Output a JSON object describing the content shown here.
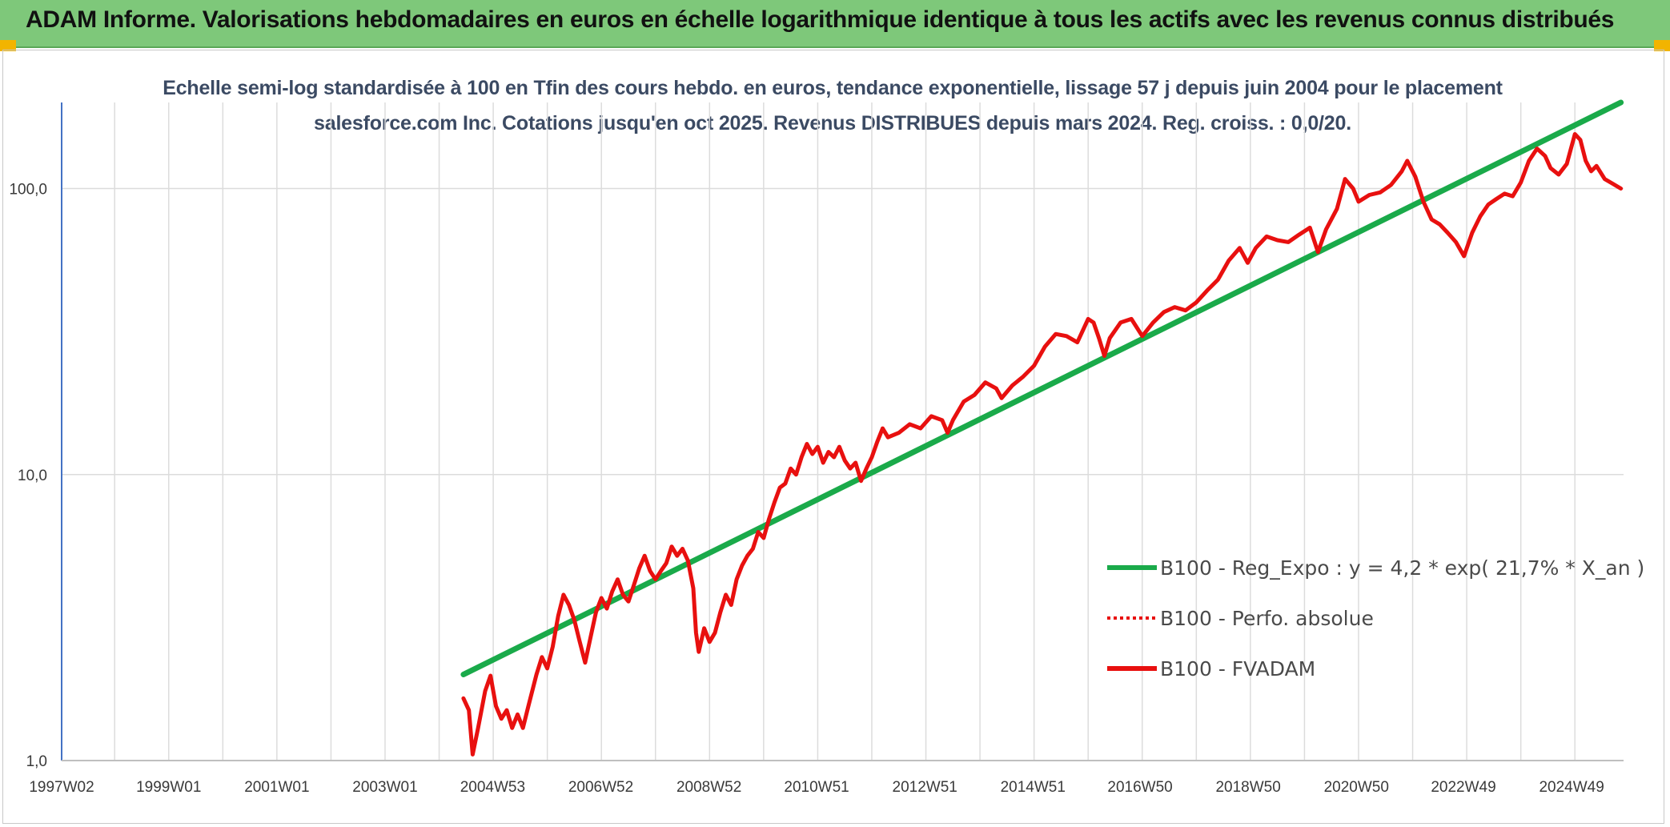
{
  "header": {
    "title": "ADAM Informe. Valorisations hebdomadaires en euros en échelle logarithmique identique à tous les actifs avec les revenus connus distribués"
  },
  "colors": {
    "header_bg": "#7ec87a",
    "corner_accent": "#f2b400",
    "trend": "#1aaa4a",
    "fvadam": "#e8100f",
    "perfo": "#e8100f",
    "grid": "#dcdcdc",
    "axis": "#4472c4"
  },
  "chart_data": {
    "type": "line",
    "title": "Echelle semi-log standardisée à 100 en Tfin des cours hebdo. en euros, tendance exponentielle, lissage 57 j depuis juin 2004 pour le placement salesforce.com Inc. Cotations jusqu'en oct 2025. Revenus DISTRIBUES depuis mars 2024. Reg. croiss. : 0,0/20.",
    "y_scale": "log",
    "ylim": [
      1,
      200
    ],
    "xlim": [
      1997.02,
      2025.9
    ],
    "y_ticks": [
      {
        "value": 1,
        "label": "1,0"
      },
      {
        "value": 10,
        "label": "10,0"
      },
      {
        "value": 100,
        "label": "100,0"
      }
    ],
    "x_ticks": [
      {
        "value": 1997.02,
        "label": "1997W02"
      },
      {
        "value": 1999.0,
        "label": "1999W01"
      },
      {
        "value": 2001.0,
        "label": "2001W01"
      },
      {
        "value": 2003.0,
        "label": "2003W01"
      },
      {
        "value": 2004.99,
        "label": "2004W53"
      },
      {
        "value": 2006.99,
        "label": "2006W52"
      },
      {
        "value": 2008.99,
        "label": "2008W52"
      },
      {
        "value": 2010.98,
        "label": "2010W51"
      },
      {
        "value": 2012.98,
        "label": "2012W51"
      },
      {
        "value": 2014.98,
        "label": "2014W51"
      },
      {
        "value": 2016.96,
        "label": "2016W50"
      },
      {
        "value": 2018.96,
        "label": "2018W50"
      },
      {
        "value": 2020.96,
        "label": "2020W50"
      },
      {
        "value": 2022.94,
        "label": "2022W49"
      },
      {
        "value": 2024.94,
        "label": "2024W49"
      }
    ],
    "grid": true,
    "legend_position": "right",
    "series": [
      {
        "name": "B100 - Reg_Expo : y = 4,2 * exp( 21,7% *  X_an )",
        "style": "solid",
        "points": [
          [
            2004.45,
            2.0
          ],
          [
            2025.85,
            200
          ]
        ]
      },
      {
        "name": "B100 - Perfo. absolue",
        "style": "dotted",
        "points": []
      },
      {
        "name": "B100 - FVADAM",
        "style": "solid",
        "points": [
          [
            2004.45,
            1.65
          ],
          [
            2004.55,
            1.5
          ],
          [
            2004.62,
            1.05
          ],
          [
            2004.72,
            1.3
          ],
          [
            2004.85,
            1.75
          ],
          [
            2004.95,
            1.98
          ],
          [
            2005.05,
            1.55
          ],
          [
            2005.15,
            1.4
          ],
          [
            2005.25,
            1.5
          ],
          [
            2005.35,
            1.3
          ],
          [
            2005.45,
            1.45
          ],
          [
            2005.55,
            1.3
          ],
          [
            2005.65,
            1.55
          ],
          [
            2005.8,
            2.0
          ],
          [
            2005.9,
            2.3
          ],
          [
            2006.0,
            2.1
          ],
          [
            2006.1,
            2.5
          ],
          [
            2006.2,
            3.2
          ],
          [
            2006.3,
            3.8
          ],
          [
            2006.4,
            3.5
          ],
          [
            2006.5,
            3.1
          ],
          [
            2006.6,
            2.6
          ],
          [
            2006.7,
            2.2
          ],
          [
            2006.8,
            2.7
          ],
          [
            2006.9,
            3.3
          ],
          [
            2007.0,
            3.7
          ],
          [
            2007.1,
            3.4
          ],
          [
            2007.2,
            3.9
          ],
          [
            2007.3,
            4.3
          ],
          [
            2007.4,
            3.8
          ],
          [
            2007.5,
            3.6
          ],
          [
            2007.6,
            4.1
          ],
          [
            2007.7,
            4.7
          ],
          [
            2007.8,
            5.2
          ],
          [
            2007.9,
            4.6
          ],
          [
            2008.0,
            4.3
          ],
          [
            2008.1,
            4.6
          ],
          [
            2008.2,
            4.9
          ],
          [
            2008.3,
            5.6
          ],
          [
            2008.4,
            5.2
          ],
          [
            2008.5,
            5.5
          ],
          [
            2008.6,
            5.0
          ],
          [
            2008.7,
            4.0
          ],
          [
            2008.75,
            2.8
          ],
          [
            2008.8,
            2.4
          ],
          [
            2008.9,
            2.9
          ],
          [
            2009.0,
            2.6
          ],
          [
            2009.1,
            2.8
          ],
          [
            2009.2,
            3.3
          ],
          [
            2009.3,
            3.8
          ],
          [
            2009.4,
            3.5
          ],
          [
            2009.5,
            4.3
          ],
          [
            2009.6,
            4.8
          ],
          [
            2009.7,
            5.2
          ],
          [
            2009.8,
            5.5
          ],
          [
            2009.9,
            6.3
          ],
          [
            2010.0,
            6.0
          ],
          [
            2010.1,
            7.0
          ],
          [
            2010.2,
            8.0
          ],
          [
            2010.3,
            9.0
          ],
          [
            2010.4,
            9.3
          ],
          [
            2010.5,
            10.5
          ],
          [
            2010.6,
            10.0
          ],
          [
            2010.7,
            11.5
          ],
          [
            2010.8,
            12.8
          ],
          [
            2010.9,
            11.8
          ],
          [
            2011.0,
            12.5
          ],
          [
            2011.1,
            11.0
          ],
          [
            2011.2,
            12.0
          ],
          [
            2011.3,
            11.5
          ],
          [
            2011.4,
            12.5
          ],
          [
            2011.5,
            11.2
          ],
          [
            2011.6,
            10.5
          ],
          [
            2011.7,
            11.0
          ],
          [
            2011.8,
            9.5
          ],
          [
            2011.9,
            10.5
          ],
          [
            2012.0,
            11.5
          ],
          [
            2012.1,
            13.0
          ],
          [
            2012.2,
            14.5
          ],
          [
            2012.3,
            13.5
          ],
          [
            2012.5,
            14.0
          ],
          [
            2012.7,
            15.0
          ],
          [
            2012.9,
            14.5
          ],
          [
            2013.1,
            16.0
          ],
          [
            2013.3,
            15.5
          ],
          [
            2013.4,
            14.0
          ],
          [
            2013.5,
            15.5
          ],
          [
            2013.7,
            18.0
          ],
          [
            2013.9,
            19.0
          ],
          [
            2014.1,
            21.0
          ],
          [
            2014.3,
            20.0
          ],
          [
            2014.4,
            18.5
          ],
          [
            2014.6,
            20.5
          ],
          [
            2014.8,
            22.0
          ],
          [
            2015.0,
            24.0
          ],
          [
            2015.2,
            28.0
          ],
          [
            2015.4,
            31.0
          ],
          [
            2015.6,
            30.5
          ],
          [
            2015.8,
            29.0
          ],
          [
            2016.0,
            35.0
          ],
          [
            2016.1,
            34.0
          ],
          [
            2016.2,
            30.0
          ],
          [
            2016.3,
            26.0
          ],
          [
            2016.4,
            30.0
          ],
          [
            2016.6,
            34.0
          ],
          [
            2016.8,
            35.0
          ],
          [
            2017.0,
            30.5
          ],
          [
            2017.2,
            34.0
          ],
          [
            2017.4,
            37.0
          ],
          [
            2017.6,
            38.5
          ],
          [
            2017.8,
            37.5
          ],
          [
            2018.0,
            40.0
          ],
          [
            2018.2,
            44.0
          ],
          [
            2018.4,
            48.0
          ],
          [
            2018.6,
            56.0
          ],
          [
            2018.8,
            62.0
          ],
          [
            2018.95,
            55.0
          ],
          [
            2019.1,
            62.0
          ],
          [
            2019.3,
            68.0
          ],
          [
            2019.5,
            66.0
          ],
          [
            2019.7,
            65.0
          ],
          [
            2019.9,
            69.0
          ],
          [
            2020.1,
            73.0
          ],
          [
            2020.25,
            60.0
          ],
          [
            2020.4,
            72.0
          ],
          [
            2020.6,
            85.0
          ],
          [
            2020.75,
            108.0
          ],
          [
            2020.9,
            100.0
          ],
          [
            2021.0,
            90.0
          ],
          [
            2021.2,
            95.0
          ],
          [
            2021.4,
            97.0
          ],
          [
            2021.6,
            103.0
          ],
          [
            2021.8,
            115.0
          ],
          [
            2021.9,
            125.0
          ],
          [
            2022.05,
            110.0
          ],
          [
            2022.2,
            90.0
          ],
          [
            2022.35,
            78.0
          ],
          [
            2022.5,
            75.0
          ],
          [
            2022.65,
            70.0
          ],
          [
            2022.8,
            65.0
          ],
          [
            2022.95,
            58.0
          ],
          [
            2023.1,
            70.0
          ],
          [
            2023.25,
            80.0
          ],
          [
            2023.4,
            88.0
          ],
          [
            2023.55,
            92.0
          ],
          [
            2023.7,
            96.0
          ],
          [
            2023.85,
            94.0
          ],
          [
            2024.0,
            105.0
          ],
          [
            2024.15,
            125.0
          ],
          [
            2024.3,
            138.0
          ],
          [
            2024.45,
            130.0
          ],
          [
            2024.55,
            118.0
          ],
          [
            2024.7,
            112.0
          ],
          [
            2024.85,
            122.0
          ],
          [
            2025.0,
            155.0
          ],
          [
            2025.1,
            148.0
          ],
          [
            2025.2,
            125.0
          ],
          [
            2025.3,
            115.0
          ],
          [
            2025.4,
            120.0
          ],
          [
            2025.55,
            108.0
          ],
          [
            2025.7,
            104.0
          ],
          [
            2025.85,
            100.0
          ]
        ]
      }
    ]
  }
}
